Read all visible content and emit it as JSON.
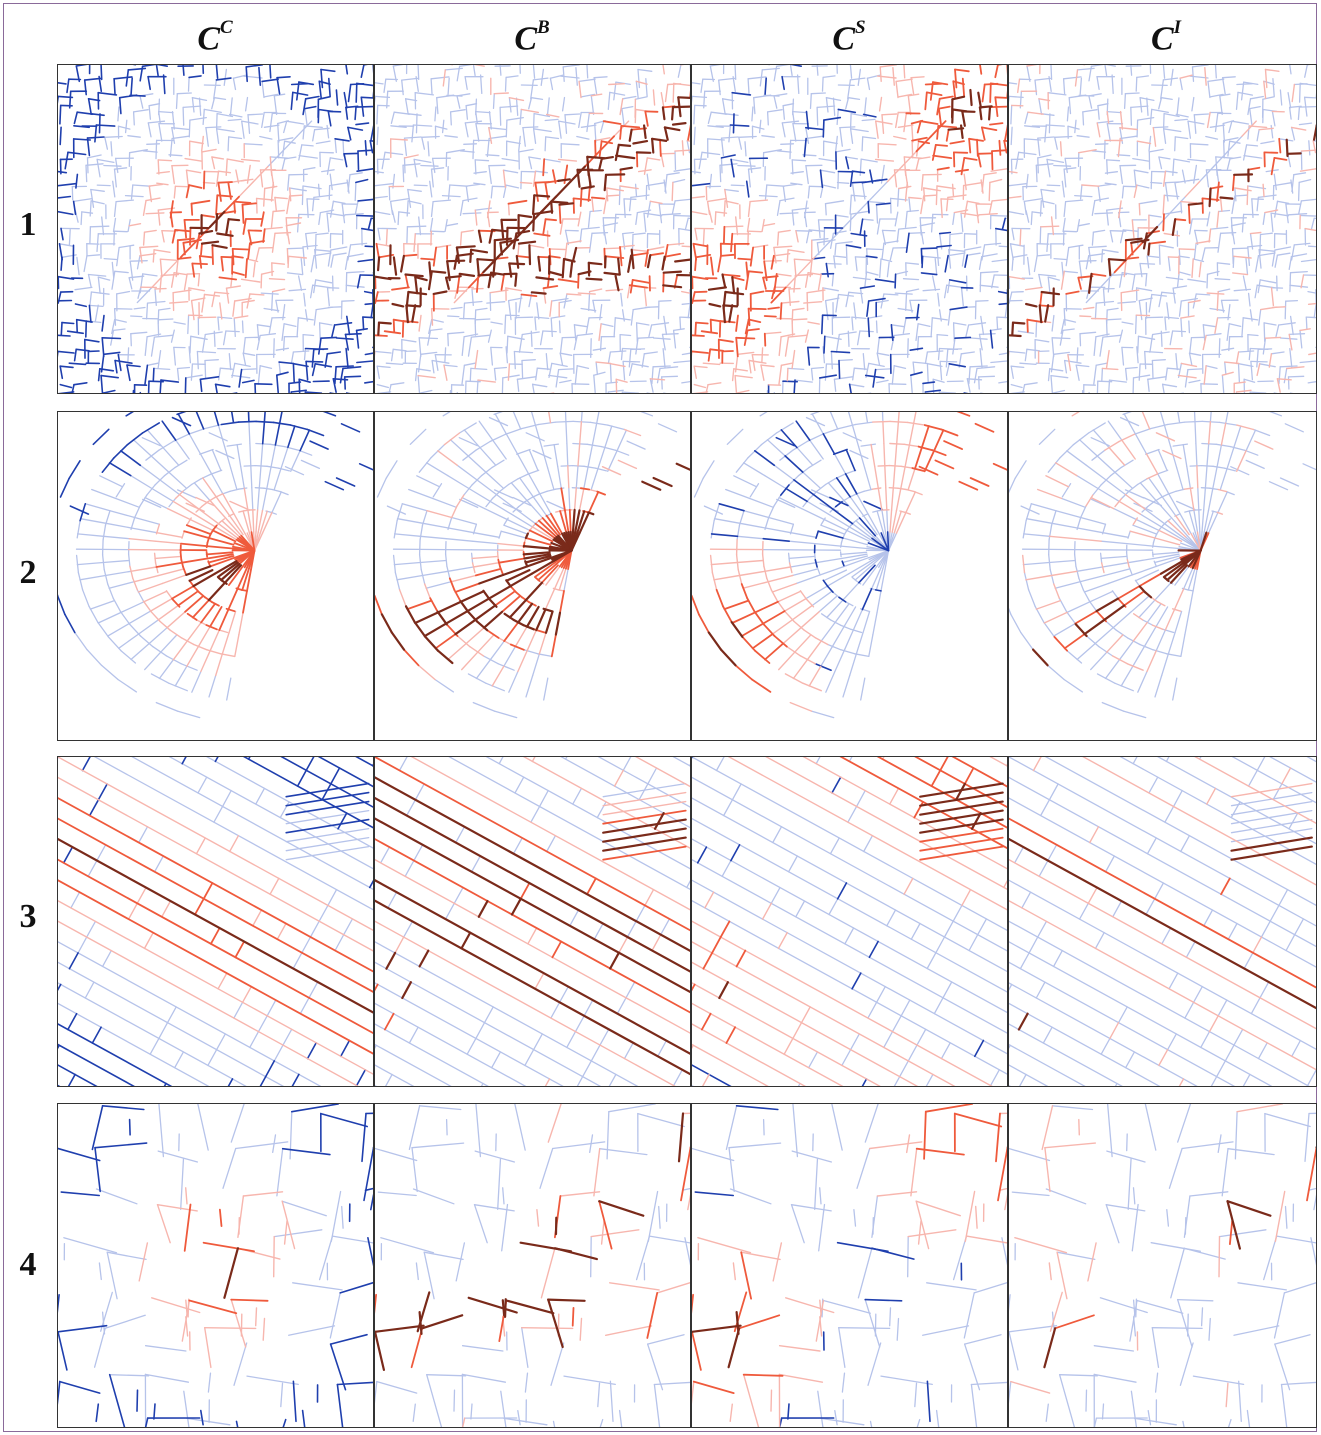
{
  "columns": [
    {
      "symbol": "C",
      "superscript": "C"
    },
    {
      "symbol": "C",
      "superscript": "B"
    },
    {
      "symbol": "C",
      "superscript": "S"
    },
    {
      "symbol": "C",
      "superscript": "I"
    }
  ],
  "rows": [
    {
      "label": "1",
      "style": "dense-organic",
      "seed": 11
    },
    {
      "label": "2",
      "style": "radial-fan",
      "seed": 23
    },
    {
      "label": "3",
      "style": "diagonal-grid",
      "seed": 37
    },
    {
      "label": "4",
      "style": "sparse-suburban",
      "seed": 51
    }
  ],
  "colors": {
    "low_dark": "#1f3fae",
    "low_light": "#b6c3ea",
    "high_light": "#f7b6ae",
    "high_mid": "#ef5a3c",
    "high_dark": "#7a2a1a",
    "panel_border": "#333333",
    "page_border": "#8a6a9a"
  }
}
